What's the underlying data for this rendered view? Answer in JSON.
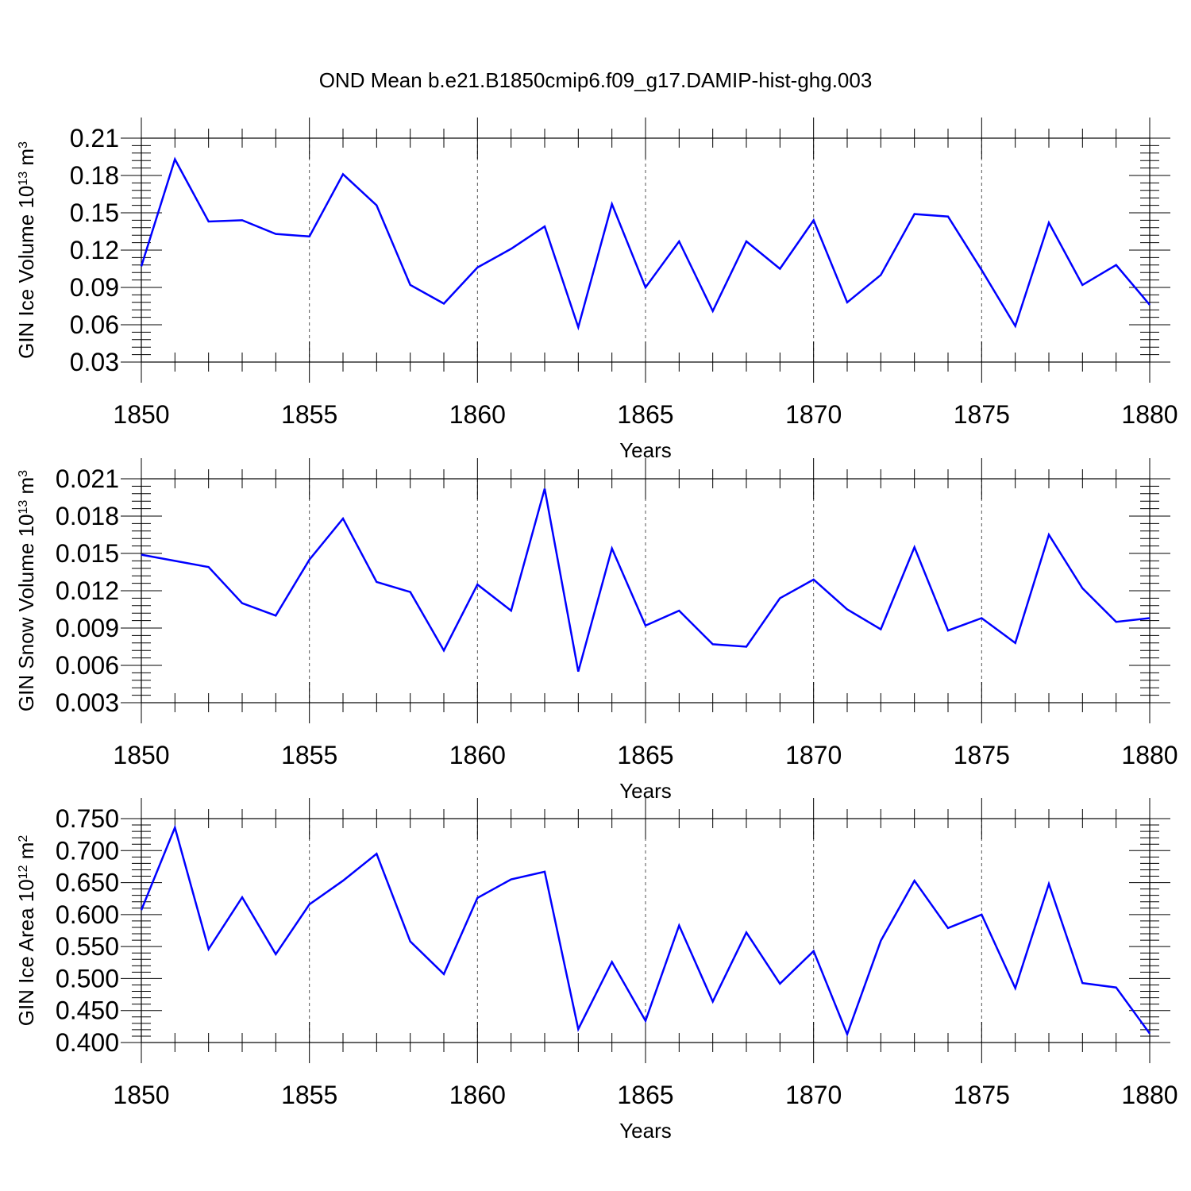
{
  "title": "OND Mean b.e21.B1850cmip6.f09_g17.DAMIP-hist-ghg.003",
  "colors": {
    "line": "#0000ff",
    "grid": "#555555",
    "axis": "#000000"
  },
  "chart_data": [
    {
      "type": "line",
      "xlabel": "Years",
      "ylabel": "GIN Ice Volume 10",
      "ylabel_exp": "13",
      "ylabel_unit": " m",
      "ylabel_unit_exp": "3",
      "xlim": [
        1850,
        1880
      ],
      "ylim": [
        0.03,
        0.21
      ],
      "xticks": [
        1850,
        1855,
        1860,
        1865,
        1870,
        1875,
        1880
      ],
      "xtick_labels": [
        "1850",
        "1855",
        "1860",
        "1865",
        "1870",
        "1875",
        "1880"
      ],
      "yticks": [
        0.03,
        0.06,
        0.09,
        0.12,
        0.15,
        0.18,
        0.21
      ],
      "ytick_labels": [
        "0.03",
        "0.06",
        "0.09",
        "0.12",
        "0.15",
        "0.18",
        "0.21"
      ],
      "grid": "vertical dashed at major x ticks",
      "x": [
        1850,
        1851,
        1852,
        1853,
        1854,
        1855,
        1856,
        1857,
        1858,
        1859,
        1860,
        1861,
        1862,
        1863,
        1864,
        1865,
        1866,
        1867,
        1868,
        1869,
        1870,
        1871,
        1872,
        1873,
        1874,
        1875,
        1876,
        1877,
        1878,
        1879,
        1880
      ],
      "series": [
        {
          "values": [
            0.107,
            0.193,
            0.143,
            0.144,
            0.133,
            0.131,
            0.181,
            0.156,
            0.092,
            0.077,
            0.106,
            0.121,
            0.139,
            0.058,
            0.157,
            0.09,
            0.127,
            0.071,
            0.127,
            0.105,
            0.144,
            0.078,
            0.1,
            0.149,
            0.147,
            0.104,
            0.059,
            0.142,
            0.092,
            0.108,
            0.076
          ]
        }
      ]
    },
    {
      "type": "line",
      "xlabel": "Years",
      "ylabel": "GIN Snow Volume 10",
      "ylabel_exp": "13",
      "ylabel_unit": " m",
      "ylabel_unit_exp": "3",
      "xlim": [
        1850,
        1880
      ],
      "ylim": [
        0.003,
        0.021
      ],
      "xticks": [
        1850,
        1855,
        1860,
        1865,
        1870,
        1875,
        1880
      ],
      "xtick_labels": [
        "1850",
        "1855",
        "1860",
        "1865",
        "1870",
        "1875",
        "1880"
      ],
      "yticks": [
        0.003,
        0.006,
        0.009,
        0.012,
        0.015,
        0.018,
        0.021
      ],
      "ytick_labels": [
        "0.003",
        "0.006",
        "0.009",
        "0.012",
        "0.015",
        "0.018",
        "0.021"
      ],
      "grid": "vertical dashed at major x ticks",
      "x": [
        1850,
        1851,
        1852,
        1853,
        1854,
        1855,
        1856,
        1857,
        1858,
        1859,
        1860,
        1861,
        1862,
        1863,
        1864,
        1865,
        1866,
        1867,
        1868,
        1869,
        1870,
        1871,
        1872,
        1873,
        1874,
        1875,
        1876,
        1877,
        1878,
        1879,
        1880
      ],
      "series": [
        {
          "values": [
            0.0149,
            0.0144,
            0.0139,
            0.011,
            0.01,
            0.0145,
            0.0178,
            0.0127,
            0.0119,
            0.0072,
            0.0125,
            0.0104,
            0.0202,
            0.0055,
            0.0154,
            0.0092,
            0.0104,
            0.0077,
            0.0075,
            0.0114,
            0.0129,
            0.0105,
            0.0089,
            0.0155,
            0.0088,
            0.0098,
            0.0078,
            0.0165,
            0.0122,
            0.0095,
            0.0098
          ]
        }
      ]
    },
    {
      "type": "line",
      "xlabel": "Years",
      "ylabel": "GIN Ice Area 10",
      "ylabel_exp": "12",
      "ylabel_unit": " m",
      "ylabel_unit_exp": "2",
      "xlim": [
        1850,
        1880
      ],
      "ylim": [
        0.4,
        0.75
      ],
      "xticks": [
        1850,
        1855,
        1860,
        1865,
        1870,
        1875,
        1880
      ],
      "xtick_labels": [
        "1850",
        "1855",
        "1860",
        "1865",
        "1870",
        "1875",
        "1880"
      ],
      "yticks": [
        0.4,
        0.45,
        0.5,
        0.55,
        0.6,
        0.65,
        0.7,
        0.75
      ],
      "ytick_labels": [
        "0.400",
        "0.450",
        "0.500",
        "0.550",
        "0.600",
        "0.650",
        "0.700",
        "0.750"
      ],
      "grid": "vertical dashed at major x ticks",
      "x": [
        1850,
        1851,
        1852,
        1853,
        1854,
        1855,
        1856,
        1857,
        1858,
        1859,
        1860,
        1861,
        1862,
        1863,
        1864,
        1865,
        1866,
        1867,
        1868,
        1869,
        1870,
        1871,
        1872,
        1873,
        1874,
        1875,
        1876,
        1877,
        1878,
        1879,
        1880
      ],
      "series": [
        {
          "values": [
            0.607,
            0.736,
            0.546,
            0.627,
            0.538,
            0.616,
            0.653,
            0.695,
            0.558,
            0.507,
            0.626,
            0.655,
            0.667,
            0.421,
            0.526,
            0.434,
            0.583,
            0.464,
            0.572,
            0.492,
            0.543,
            0.413,
            0.559,
            0.653,
            0.579,
            0.6,
            0.485,
            0.648,
            0.493,
            0.486,
            0.414
          ]
        }
      ]
    }
  ]
}
